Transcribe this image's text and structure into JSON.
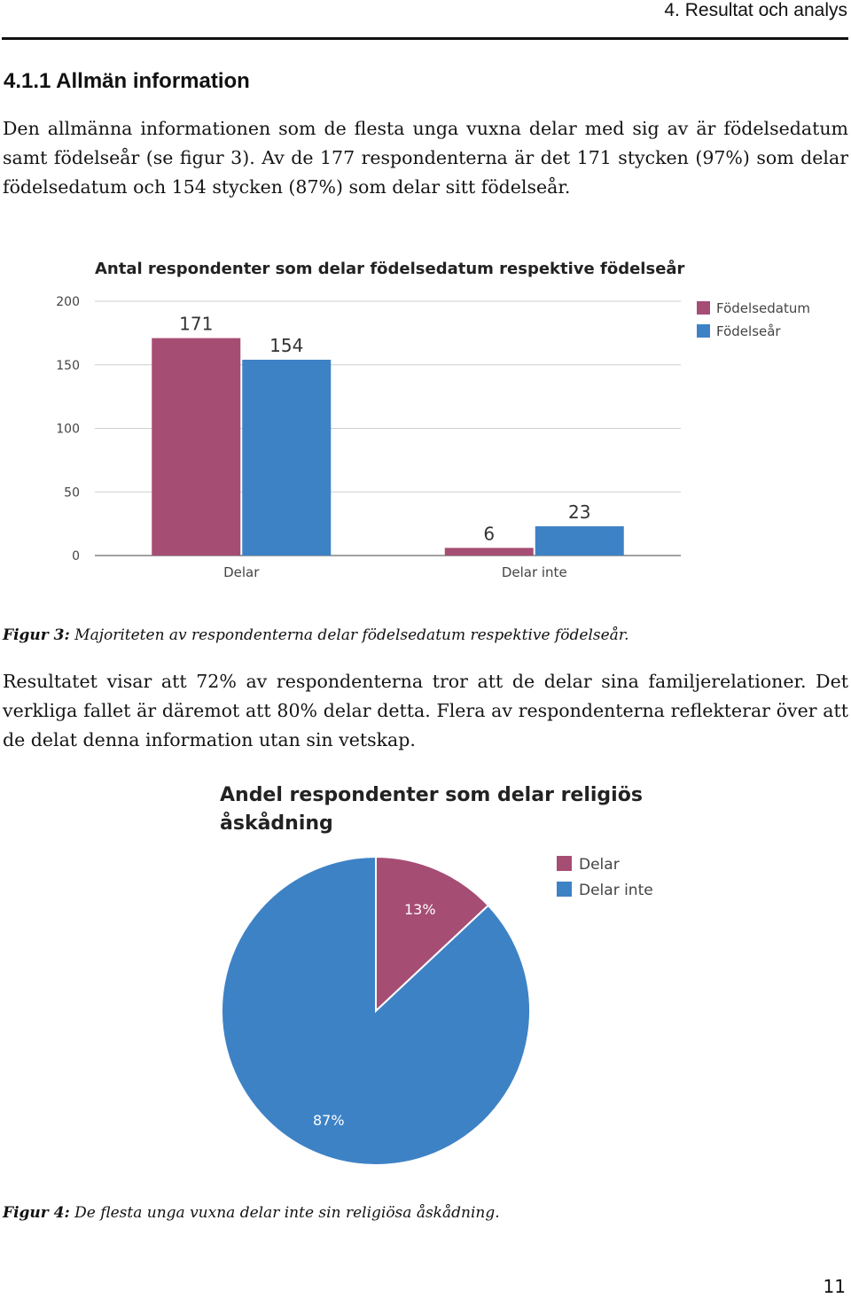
{
  "header": {
    "running_title": "4.  Resultat och analys"
  },
  "section": {
    "heading": "4.1.1 Allmän information"
  },
  "paragraphs": {
    "p1": "Den allmänna informationen som de flesta unga vuxna delar med sig av är födelsedatum samt födelseår (se figur 3). Av de 177 respondenterna är det 171 stycken (97%) som delar födelsedatum och 154 stycken (87%) som delar sitt födelseår.",
    "p2": "Resultatet visar att 72% av respondenterna tror att de delar sina familjerelationer. Det verkliga fallet är däremot att 80% delar detta. Flera av respondenterna reflekterar över att de delat denna information utan sin vetskap."
  },
  "captions": {
    "fig3_label": "Figur 3:",
    "fig3_text": " Majoriteten av respondenterna delar födelsedatum respektive födelseår.",
    "fig4_label": "Figur 4:",
    "fig4_text": " De flesta unga vuxna delar inte sin religiösa åskådning."
  },
  "page_number": "11",
  "chart_data": [
    {
      "type": "bar",
      "title": "Antal respondenter som delar födelsedatum respektive födelseår",
      "categories": [
        "Delar",
        "Delar inte"
      ],
      "series": [
        {
          "name": "Födelsedatum",
          "color": "#a64d73",
          "values": [
            171,
            6
          ]
        },
        {
          "name": "Födelseår",
          "color": "#3e82c6",
          "values": [
            154,
            23
          ]
        }
      ],
      "ylim": [
        0,
        200
      ],
      "yticks": [
        0,
        50,
        100,
        150,
        200
      ],
      "grid": true,
      "legend": "right",
      "data_labels": true
    },
    {
      "type": "pie",
      "title_lines": [
        "Andel respondenter som delar religiös",
        "åskådning"
      ],
      "slices": [
        {
          "name": "Delar",
          "value": 13,
          "label": "13%",
          "color": "#a64d73"
        },
        {
          "name": "Delar inte",
          "value": 87,
          "label": "87%",
          "color": "#3e82c6"
        }
      ],
      "legend": "right"
    }
  ]
}
